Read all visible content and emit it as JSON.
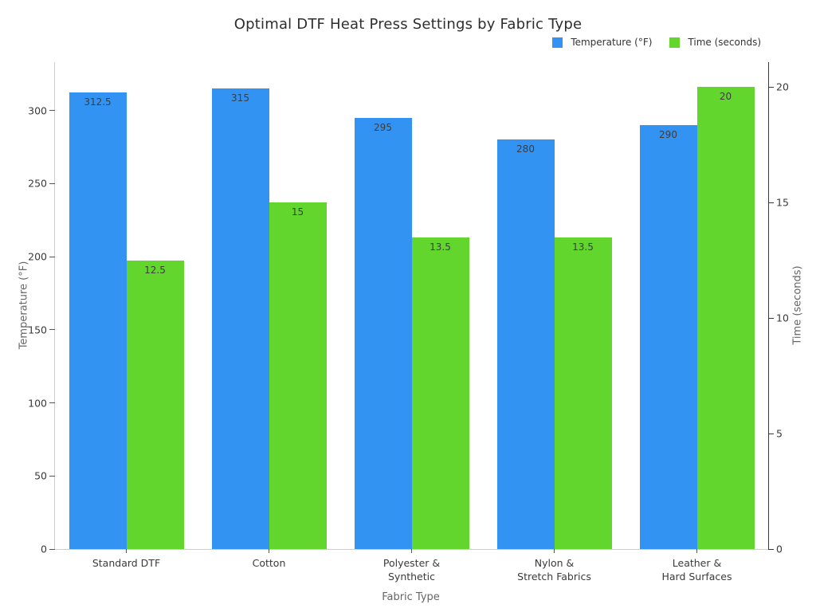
{
  "chart_data": {
    "type": "bar",
    "title": "Optimal DTF Heat Press Settings by Fabric Type",
    "xlabel": "Fabric Type",
    "ylabel_left": "Temperature (°F)",
    "ylabel_right": "Time (seconds)",
    "categories": [
      "Standard DTF",
      "Cotton",
      "Polyester &\nSynthetic",
      "Nylon &\nStretch Fabrics",
      "Leather &\nHard Surfaces"
    ],
    "series": [
      {
        "name": "Temperature (°F)",
        "axis": "left",
        "color": "#3293F3",
        "values": [
          312.5,
          315,
          295,
          280,
          290
        ],
        "labels": [
          "312.5",
          "315",
          "295",
          "280",
          "290"
        ]
      },
      {
        "name": "Time (seconds)",
        "axis": "right",
        "color": "#62D62D",
        "values": [
          12.5,
          15,
          13.5,
          13.5,
          20
        ],
        "labels": [
          "12.5",
          "15",
          "13.5",
          "13.5",
          "20"
        ]
      }
    ],
    "yticks_left": [
      0,
      50,
      100,
      150,
      200,
      250,
      300
    ],
    "yticks_right": [
      0,
      5,
      10,
      15,
      20
    ],
    "ylim_left": [
      0,
      333
    ],
    "ylim_right": [
      0,
      21.07
    ],
    "legend_position": "top-right",
    "grid": false,
    "bar_width_fraction": 0.4,
    "bar_labels_inside_top": true
  }
}
